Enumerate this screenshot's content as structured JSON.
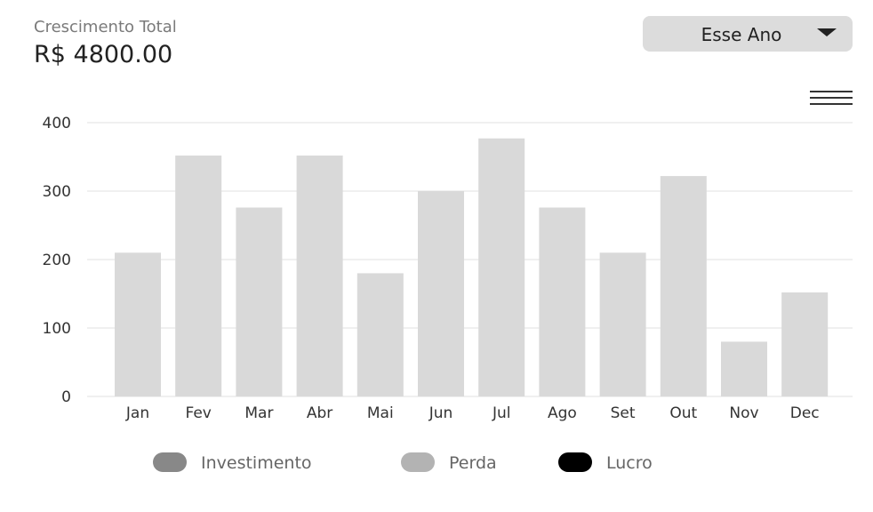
{
  "header": {
    "label": "Crescimento Total",
    "value": "R$ 4800.00"
  },
  "period_select": {
    "selected": "Esse Ano",
    "icon": "caret-down-icon"
  },
  "menu": {
    "icon": "hamburger-menu-icon"
  },
  "legend": [
    {
      "label": "Investimento",
      "color": "#888888"
    },
    {
      "label": "Perda",
      "color": "#b3b3b3"
    },
    {
      "label": "Lucro",
      "color": "#000000"
    }
  ],
  "chart_data": {
    "type": "bar",
    "categories": [
      "Jan",
      "Fev",
      "Mar",
      "Abr",
      "Mai",
      "Jun",
      "Jul",
      "Ago",
      "Set",
      "Out",
      "Nov",
      "Dec"
    ],
    "values": [
      210,
      352,
      276,
      352,
      180,
      300,
      377,
      276,
      210,
      322,
      80,
      152
    ],
    "yticks": [
      0,
      100,
      200,
      300,
      400
    ],
    "ylim": [
      0,
      400
    ],
    "grid": true,
    "bar_color": "#d9d9d9",
    "legend_position": "bottom"
  }
}
